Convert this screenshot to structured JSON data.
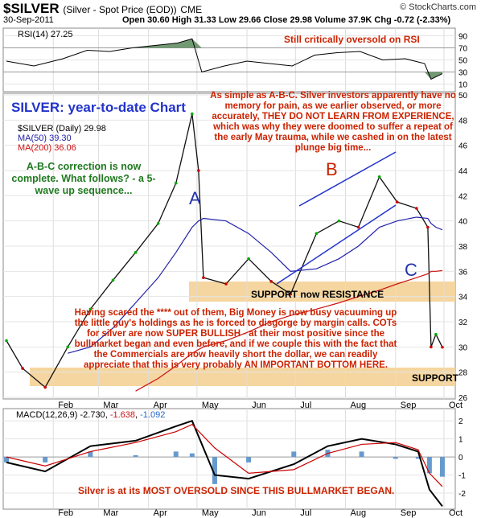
{
  "header": {
    "symbol": "$SILVER",
    "description": "(Silver - Spot Price (EOD))",
    "exchange": "CME",
    "date": "30-Sep-2011",
    "quote": "Open 30.60  High 31.33  Low 29.66  Close 29.98  Volume 37.9K  Chg -0.72 (-2.33%)",
    "copyright": "© StockCharts.com"
  },
  "rsi": {
    "label": "RSI(14) 27.25",
    "comment": "Still critically oversold on RSI",
    "ticks": [
      "90",
      "70",
      "50",
      "30",
      "10"
    ]
  },
  "price": {
    "title": "SILVER: year-to-date Chart",
    "legend": [
      "$SILVER (Daily) 29.98",
      "MA(50) 39.30",
      "MA(200) 36.06"
    ],
    "ticks": [
      "50",
      "48",
      "46",
      "44",
      "42",
      "40",
      "38",
      "36",
      "34",
      "32",
      "30",
      "28",
      "26"
    ],
    "wave_labels": [
      "A",
      "B",
      "C"
    ],
    "support_resistance_label": "SUPPORT now RESISTANCE",
    "support_label": "SUPPORT",
    "note_top": "As simple as A-B-C. Silver investors apparently have no memory for pain, as we earlier observed, or more accurately, THEY DO NOT LEARN FROM EXPERIENCE, which was why they were doomed to suffer a repeat of the early May trauma, while we cashed in on the latest plunge big time...",
    "note_left": "A-B-C correction is now complete. What follows? - a 5-wave up sequence...",
    "note_bottom": "Having scared the **** out of them, Big Money is now busy vacuuming up the little guy's holdings as he is forced to disgorge by margin calls. COTs for silver are now SUPER BULLISH - at their most positive since the bullmarket began and even before, and if we couple this with the fact that the Commercials are now heavily short the dollar, we can readily appreciate that this is very probably AN IMPORTANT BOTTOM HERE."
  },
  "macd": {
    "label_prefix": "MACD(12,26,9)",
    "values": [
      "-2.730",
      "-1.638",
      "-1.092"
    ],
    "ticks": [
      "2",
      "1",
      "0",
      "-1",
      "-2"
    ],
    "comment": "Silver is at its MOST OVERSOLD SINCE THIS BULLMARKET BEGAN."
  },
  "months": [
    "Feb",
    "Mar",
    "Apr",
    "May",
    "Jun",
    "Jul",
    "Aug",
    "Sep",
    "Oct"
  ],
  "colors": {
    "up": "#00aa00",
    "down": "#cc0000",
    "ma50": "#2222aa",
    "ma200": "#cc1111",
    "annot": "#cc2200",
    "title": "#2233cc",
    "green_note": "#207a20",
    "band": "#f5d6a0",
    "rsi_fill": "#5a8a5a"
  },
  "chart_data": [
    {
      "type": "line",
      "name": "RSI(14)",
      "x": [
        "2011-01-03",
        "2011-01-20",
        "2011-02-07",
        "2011-02-22",
        "2011-03-08",
        "2011-03-22",
        "2011-04-05",
        "2011-04-19",
        "2011-04-28",
        "2011-05-04",
        "2011-05-18",
        "2011-06-01",
        "2011-06-15",
        "2011-06-29",
        "2011-07-13",
        "2011-07-27",
        "2011-08-10",
        "2011-08-24",
        "2011-09-07",
        "2011-09-19",
        "2011-09-23",
        "2011-09-30"
      ],
      "y": [
        48,
        40,
        52,
        66,
        64,
        70,
        74,
        78,
        85,
        30,
        40,
        48,
        44,
        40,
        58,
        62,
        64,
        50,
        52,
        44,
        18,
        27.25
      ],
      "ylim": [
        0,
        100
      ]
    },
    {
      "type": "line",
      "title": "SILVER: year-to-date Chart",
      "x": [
        "2011-01-03",
        "2011-01-13",
        "2011-01-27",
        "2011-02-10",
        "2011-02-24",
        "2011-03-10",
        "2011-03-24",
        "2011-04-07",
        "2011-04-18",
        "2011-04-28",
        "2011-05-02",
        "2011-05-05",
        "2011-05-19",
        "2011-06-02",
        "2011-06-16",
        "2011-06-28",
        "2011-07-14",
        "2011-07-28",
        "2011-08-09",
        "2011-08-22",
        "2011-09-02",
        "2011-09-14",
        "2011-09-21",
        "2011-09-23",
        "2011-09-26",
        "2011-09-30"
      ],
      "series": [
        {
          "name": "$SILVER",
          "values": [
            30.5,
            28.3,
            26.8,
            30.0,
            33.0,
            35.3,
            37.5,
            39.8,
            43.0,
            48.5,
            44.0,
            35.5,
            35.0,
            37.0,
            35.2,
            34.2,
            39.0,
            40.0,
            39.5,
            43.5,
            41.5,
            41.0,
            39.5,
            30.0,
            31.0,
            29.98
          ]
        },
        {
          "name": "MA(50)",
          "values": [
            null,
            null,
            null,
            29.5,
            30.0,
            31.5,
            33.5,
            35.5,
            37.5,
            39.5,
            40.0,
            40.2,
            40.0,
            39.0,
            37.5,
            36.0,
            36.2,
            37.0,
            38.0,
            39.5,
            40.0,
            40.3,
            40.2,
            39.8,
            39.5,
            39.3
          ]
        },
        {
          "name": "MA(200)",
          "values": [
            null,
            null,
            null,
            null,
            null,
            null,
            26.5,
            27.5,
            28.5,
            29.5,
            29.8,
            30.0,
            30.5,
            31.2,
            32.0,
            32.5,
            33.0,
            33.5,
            34.0,
            34.5,
            35.0,
            35.5,
            35.8,
            36.0,
            36.0,
            36.06
          ]
        }
      ],
      "ylim": [
        26,
        50
      ]
    },
    {
      "type": "line",
      "title": "MACD(12,26,9)",
      "x": [
        "2011-01-03",
        "2011-01-27",
        "2011-02-24",
        "2011-03-24",
        "2011-04-18",
        "2011-04-28",
        "2011-05-12",
        "2011-06-02",
        "2011-06-30",
        "2011-07-21",
        "2011-08-11",
        "2011-09-01",
        "2011-09-15",
        "2011-09-22",
        "2011-09-30"
      ],
      "series": [
        {
          "name": "MACD",
          "values": [
            -0.3,
            -0.8,
            0.6,
            0.9,
            1.7,
            2.0,
            -1.0,
            -1.2,
            -0.4,
            0.6,
            1.0,
            0.7,
            0.3,
            -1.8,
            -2.73
          ]
        },
        {
          "name": "Signal",
          "values": [
            0.0,
            -0.5,
            0.3,
            0.8,
            1.4,
            1.8,
            0.5,
            -0.9,
            -0.7,
            0.2,
            0.7,
            0.8,
            0.4,
            -0.9,
            -1.638
          ]
        },
        {
          "name": "Histogram",
          "values": [
            -0.3,
            -0.3,
            0.3,
            0.1,
            0.3,
            0.2,
            -1.5,
            -0.3,
            0.3,
            0.4,
            0.3,
            -0.1,
            -0.1,
            -0.9,
            -1.092
          ]
        }
      ],
      "ylim": [
        -2.8,
        2.5
      ]
    }
  ]
}
